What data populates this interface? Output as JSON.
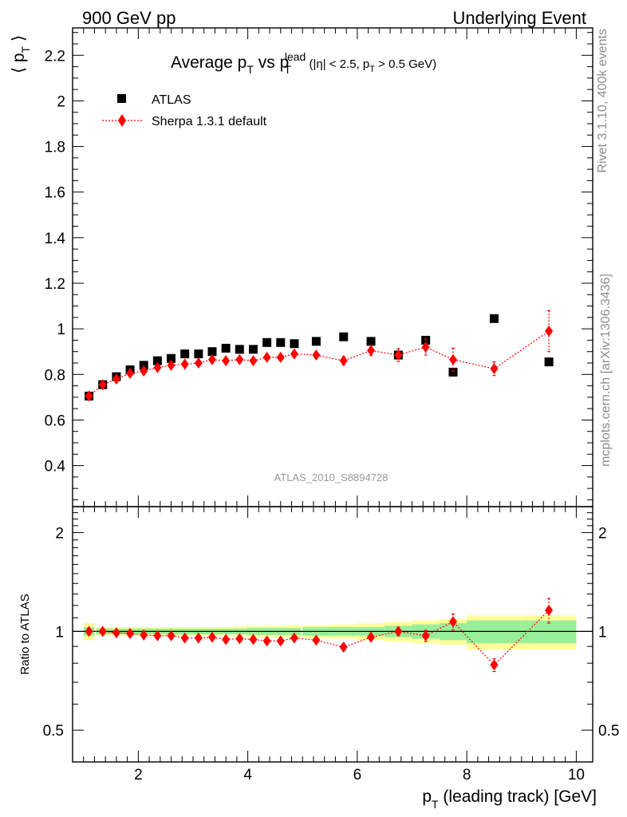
{
  "header": {
    "left": "900 GeV pp",
    "right": "Underlying Event"
  },
  "side_text": {
    "rivet": "Rivet 3.1.10,  400k events",
    "mcplots": "mcplots.cern.ch [arXiv:1306.3436]"
  },
  "chart_data": [
    {
      "type": "scatter",
      "title_main": "Average p",
      "title_sub_T": "T",
      "title_vs": " vs p",
      "title_sup_lead": "lead",
      "title_cuts_pre": " (|η| < 2.5, p",
      "title_cuts_post": " > 0.5 GeV)",
      "ylabel_main": "⟨ p",
      "ylabel_close": " ⟩",
      "analysis_label": "ATLAS_2010_S8894728",
      "xlim": [
        0.8,
        10.3
      ],
      "ylim": [
        0.22,
        2.32
      ],
      "yticks": [
        "0.4",
        "0.6",
        "0.8",
        "1",
        "1.2",
        "1.4",
        "1.6",
        "1.8",
        "2",
        "2.2"
      ],
      "legend": [
        "ATLAS",
        "Sherpa 1.3.1 default"
      ],
      "x": [
        1.1,
        1.35,
        1.6,
        1.85,
        2.1,
        2.35,
        2.6,
        2.85,
        3.1,
        3.35,
        3.6,
        3.85,
        4.1,
        4.35,
        4.6,
        4.85,
        5.25,
        5.75,
        6.25,
        6.75,
        7.25,
        7.75,
        8.5,
        9.5
      ],
      "x_err": [
        0.1,
        0.125,
        0.125,
        0.125,
        0.125,
        0.125,
        0.125,
        0.125,
        0.125,
        0.125,
        0.125,
        0.125,
        0.125,
        0.125,
        0.125,
        0.125,
        0.25,
        0.25,
        0.25,
        0.25,
        0.25,
        0.25,
        0.5,
        0.5
      ],
      "series": [
        {
          "name": "ATLAS",
          "color": "#000000",
          "values": [
            0.705,
            0.755,
            0.79,
            0.82,
            0.84,
            0.86,
            0.87,
            0.89,
            0.89,
            0.9,
            0.915,
            0.91,
            0.91,
            0.94,
            0.94,
            0.935,
            0.945,
            0.965,
            0.945,
            0.885,
            0.95,
            0.81,
            1.045,
            0.855
          ]
        },
        {
          "name": "Sherpa 1.3.1 default",
          "color": "#ff0000",
          "values": [
            0.705,
            0.755,
            0.78,
            0.805,
            0.815,
            0.83,
            0.84,
            0.845,
            0.85,
            0.865,
            0.86,
            0.865,
            0.86,
            0.875,
            0.875,
            0.89,
            0.885,
            0.86,
            0.905,
            0.885,
            0.92,
            0.865,
            0.825,
            0.99
          ],
          "errors": [
            0.005,
            0.005,
            0.005,
            0.006,
            0.006,
            0.007,
            0.007,
            0.008,
            0.008,
            0.009,
            0.009,
            0.01,
            0.01,
            0.011,
            0.012,
            0.013,
            0.015,
            0.018,
            0.022,
            0.028,
            0.035,
            0.05,
            0.03,
            0.09
          ]
        }
      ]
    },
    {
      "type": "scatter",
      "ylabel": "Ratio to ATLAS",
      "xlabel_main": "p",
      "xlabel_rest": " (leading track) [GeV]",
      "xlim": [
        0.8,
        10.3
      ],
      "ylim": [
        0.4,
        2.4
      ],
      "yscale": "log",
      "yticks": [
        "0.5",
        "1",
        "2"
      ],
      "xticks": [
        "2",
        "4",
        "6",
        "8",
        "10"
      ],
      "band_colors": {
        "stat": "#99ee99",
        "total": "#ffff99"
      },
      "bands": {
        "stat": [
          0.03,
          0.02,
          0.02,
          0.02,
          0.02,
          0.02,
          0.02,
          0.02,
          0.02,
          0.02,
          0.02,
          0.02,
          0.025,
          0.025,
          0.025,
          0.025,
          0.03,
          0.03,
          0.03,
          0.04,
          0.05,
          0.06,
          0.08,
          0.08
        ],
        "total": [
          0.06,
          0.03,
          0.03,
          0.03,
          0.03,
          0.03,
          0.03,
          0.03,
          0.03,
          0.03,
          0.03,
          0.035,
          0.04,
          0.04,
          0.04,
          0.045,
          0.045,
          0.05,
          0.06,
          0.07,
          0.08,
          0.09,
          0.12,
          0.12
        ]
      },
      "series": [
        {
          "name": "Sherpa 1.3.1 default",
          "color": "#ff0000",
          "values": [
            1.0,
            1.0,
            0.99,
            0.985,
            0.975,
            0.97,
            0.97,
            0.955,
            0.955,
            0.96,
            0.945,
            0.95,
            0.945,
            0.935,
            0.935,
            0.955,
            0.94,
            0.895,
            0.96,
            1.0,
            0.97,
            1.07,
            0.79,
            1.16
          ],
          "errors": [
            0.007,
            0.007,
            0.007,
            0.008,
            0.008,
            0.008,
            0.009,
            0.009,
            0.01,
            0.01,
            0.011,
            0.012,
            0.012,
            0.013,
            0.014,
            0.015,
            0.017,
            0.02,
            0.025,
            0.03,
            0.038,
            0.06,
            0.035,
            0.1
          ]
        }
      ]
    }
  ]
}
